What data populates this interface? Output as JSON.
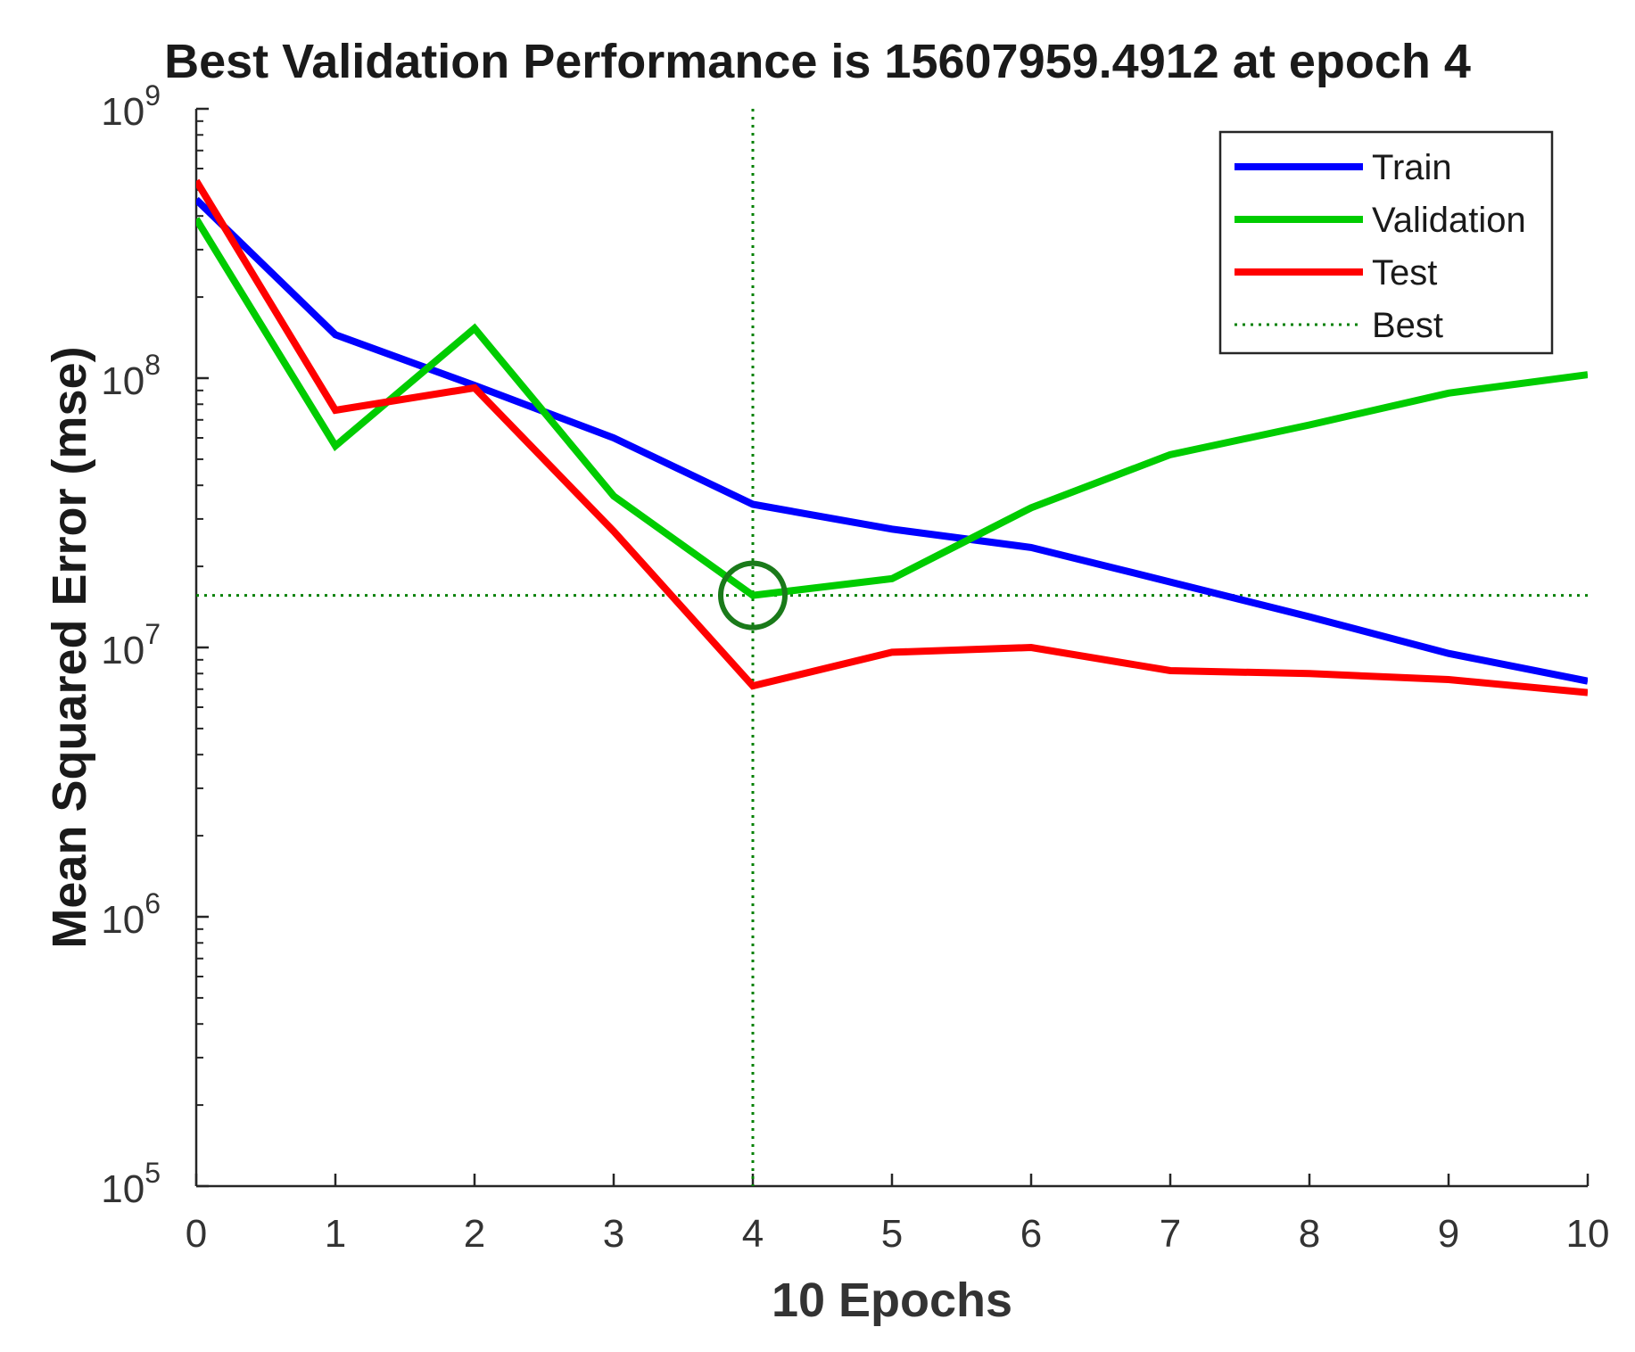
{
  "chart_data": {
    "type": "line",
    "title": "Best Validation Performance is 15607959.4912 at epoch 4",
    "xlabel": "10 Epochs",
    "ylabel": "Mean Squared Error  (mse)",
    "xlim": [
      0,
      10
    ],
    "ylim": [
      100000,
      1000000000
    ],
    "yscale": "log",
    "x_ticks": [
      "0",
      "1",
      "2",
      "3",
      "4",
      "5",
      "6",
      "7",
      "8",
      "9",
      "10"
    ],
    "y_ticks": [
      {
        "base": "10",
        "exp": "5",
        "value": 100000
      },
      {
        "base": "10",
        "exp": "6",
        "value": 1000000
      },
      {
        "base": "10",
        "exp": "7",
        "value": 10000000
      },
      {
        "base": "10",
        "exp": "8",
        "value": 100000000
      },
      {
        "base": "10",
        "exp": "9",
        "value": 1000000000
      }
    ],
    "x": [
      0,
      1,
      2,
      3,
      4,
      5,
      6,
      7,
      8,
      9,
      10
    ],
    "series": [
      {
        "name": "Train",
        "color": "#0000ff",
        "values": [
          460000000,
          145000000,
          94000000,
          60000000,
          34000000,
          27500000,
          23500000,
          17500000,
          13000000,
          9500000,
          7500000
        ]
      },
      {
        "name": "Validation",
        "color": "#00cc00",
        "values": [
          390000000,
          56000000,
          153000000,
          36500000,
          15607959.4912,
          18000000,
          33000000,
          52000000,
          67000000,
          88000000,
          103000000
        ]
      },
      {
        "name": "Test",
        "color": "#ff0000",
        "values": [
          540000000,
          76000000,
          92000000,
          27000000,
          7200000,
          9600000,
          10000000,
          8200000,
          8000000,
          7600000,
          6800000
        ]
      }
    ],
    "best": {
      "name": "Best",
      "epoch": 4,
      "value": 15607959.4912,
      "color": "#008000"
    },
    "legend": {
      "position": "top-right",
      "entries": [
        "Train",
        "Validation",
        "Test",
        "Best"
      ]
    },
    "grid": false
  }
}
